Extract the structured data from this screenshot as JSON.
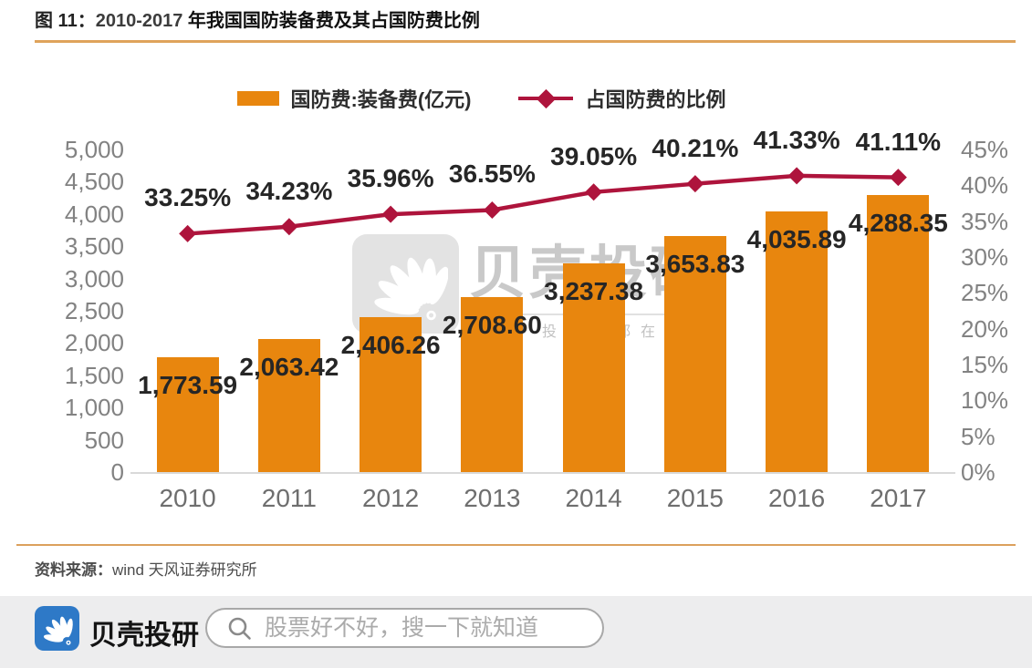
{
  "header": {
    "figure_label": "图 11：",
    "year_range": "2010-2017 ",
    "title_text": "年我国国防装备费及其占国防费比例"
  },
  "chart_data": {
    "type": "bar+line",
    "title": "2010-2017 年我国国防装备费及其占国防费比例",
    "categories": [
      "2010",
      "2011",
      "2012",
      "2013",
      "2014",
      "2015",
      "2016",
      "2017"
    ],
    "series": [
      {
        "name": "国防费:装备费(亿元)",
        "type": "bar",
        "axis": "left",
        "color": "#E8860E",
        "values": [
          1773.59,
          2063.42,
          2406.26,
          2708.6,
          3237.38,
          3653.83,
          4035.89,
          4288.35
        ],
        "labels": [
          "1,773.59",
          "2,063.42",
          "2,406.26",
          "2,708.60",
          "3,237.38",
          "3,653.83",
          "4,035.89",
          "4,288.35"
        ]
      },
      {
        "name": "占国防费的比例",
        "type": "line",
        "axis": "right",
        "color": "#AE143C",
        "marker": "diamond",
        "values": [
          33.25,
          34.23,
          35.96,
          36.55,
          39.05,
          40.21,
          41.33,
          41.11
        ],
        "labels": [
          "33.25%",
          "34.23%",
          "35.96%",
          "36.55%",
          "39.05%",
          "40.21%",
          "41.33%",
          "41.11%"
        ]
      }
    ],
    "left_axis": {
      "min": 0,
      "max": 5000,
      "step": 500,
      "tick_labels": [
        "0",
        "500",
        "1,000",
        "1,500",
        "2,000",
        "2,500",
        "3,000",
        "3,500",
        "4,000",
        "4,500",
        "5,000"
      ]
    },
    "right_axis": {
      "min": 0,
      "max": 45,
      "step": 5,
      "tick_labels": [
        "0%",
        "5%",
        "10%",
        "15%",
        "20%",
        "25%",
        "30%",
        "35%",
        "40%",
        "45%"
      ]
    },
    "grid": false,
    "legend_position": "top-center"
  },
  "watermark": {
    "brand": "贝壳投研",
    "tagline": "投资者都在关注"
  },
  "source": {
    "label": "资料来源：",
    "text": "wind 天风证券研究所"
  },
  "footer": {
    "brand": "贝壳投研",
    "search_placeholder": "股票好不好，搜一下就知道"
  },
  "colors": {
    "bar_orange": "#E8860E",
    "line_crimson": "#AE143C",
    "accent_rule": "#DFA35B",
    "logo_blue": "#2E79C7",
    "axis_text": "#828282",
    "data_label_text": "#262626",
    "footer_bg": "#EDEDEE"
  }
}
